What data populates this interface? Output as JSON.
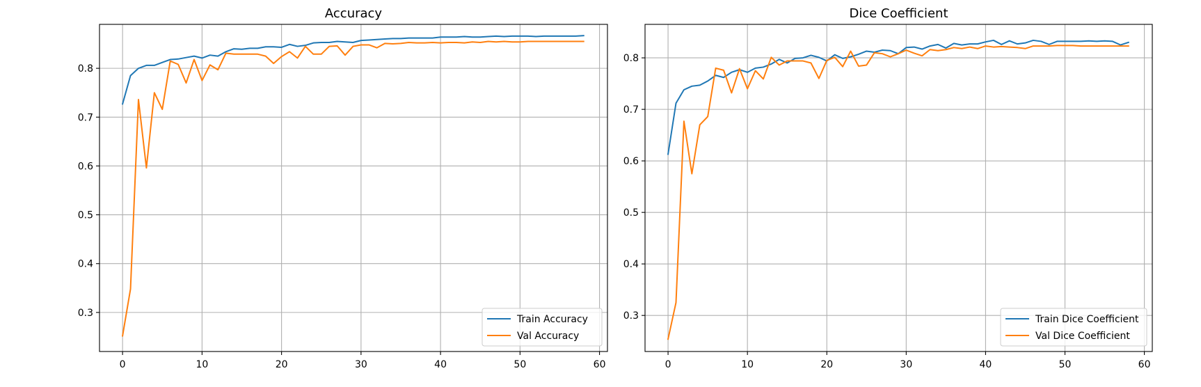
{
  "chart_data": [
    {
      "type": "line",
      "title": "Accuracy",
      "xlabel": "",
      "ylabel": "",
      "xlim": [
        -2.9,
        61.0
      ],
      "ylim": [
        0.22,
        0.89
      ],
      "xticks": [
        0,
        10,
        20,
        30,
        40,
        50,
        60
      ],
      "yticks": [
        0.3,
        0.4,
        0.5,
        0.6,
        0.7,
        0.8
      ],
      "grid": true,
      "legend_position": "lower-right",
      "series": [
        {
          "name": "Train Accuracy",
          "color": "#1f77b4",
          "x": [
            0,
            1,
            2,
            3,
            4,
            5,
            6,
            7,
            8,
            9,
            10,
            11,
            12,
            13,
            14,
            15,
            16,
            17,
            18,
            19,
            20,
            21,
            22,
            23,
            24,
            25,
            26,
            27,
            28,
            29,
            30,
            31,
            32,
            33,
            34,
            35,
            36,
            37,
            38,
            39,
            40,
            41,
            42,
            43,
            44,
            45,
            46,
            47,
            48,
            49,
            50,
            51,
            52,
            53,
            54,
            55,
            56,
            57,
            58
          ],
          "values": [
            0.727,
            0.785,
            0.8,
            0.806,
            0.806,
            0.812,
            0.818,
            0.819,
            0.822,
            0.825,
            0.821,
            0.827,
            0.825,
            0.834,
            0.84,
            0.839,
            0.841,
            0.841,
            0.844,
            0.844,
            0.843,
            0.849,
            0.845,
            0.847,
            0.852,
            0.853,
            0.853,
            0.855,
            0.854,
            0.853,
            0.857,
            0.858,
            0.859,
            0.86,
            0.861,
            0.861,
            0.862,
            0.862,
            0.862,
            0.862,
            0.864,
            0.864,
            0.864,
            0.865,
            0.864,
            0.864,
            0.865,
            0.866,
            0.865,
            0.866,
            0.866,
            0.866,
            0.865,
            0.866,
            0.866,
            0.866,
            0.866,
            0.866,
            0.867
          ]
        },
        {
          "name": "Val Accuracy",
          "color": "#ff7f0e",
          "x": [
            0,
            1,
            2,
            3,
            4,
            5,
            6,
            7,
            8,
            9,
            10,
            11,
            12,
            13,
            14,
            15,
            16,
            17,
            18,
            19,
            20,
            21,
            22,
            23,
            24,
            25,
            26,
            27,
            28,
            29,
            30,
            31,
            32,
            33,
            34,
            35,
            36,
            37,
            38,
            39,
            40,
            41,
            42,
            43,
            44,
            45,
            46,
            47,
            48,
            49,
            50,
            51,
            52,
            53,
            54,
            55,
            56,
            57,
            58
          ],
          "values": [
            0.252,
            0.348,
            0.736,
            0.596,
            0.75,
            0.716,
            0.815,
            0.808,
            0.77,
            0.818,
            0.775,
            0.807,
            0.797,
            0.831,
            0.829,
            0.829,
            0.829,
            0.829,
            0.825,
            0.81,
            0.824,
            0.834,
            0.821,
            0.845,
            0.829,
            0.829,
            0.845,
            0.846,
            0.827,
            0.845,
            0.848,
            0.848,
            0.842,
            0.851,
            0.85,
            0.851,
            0.853,
            0.852,
            0.852,
            0.853,
            0.852,
            0.853,
            0.853,
            0.852,
            0.854,
            0.853,
            0.855,
            0.854,
            0.855,
            0.854,
            0.854,
            0.855,
            0.855,
            0.855,
            0.855,
            0.855,
            0.855,
            0.855,
            0.855
          ]
        }
      ]
    },
    {
      "type": "line",
      "title": "Dice Coefficient",
      "xlabel": "",
      "ylabel": "",
      "xlim": [
        -2.9,
        61.0
      ],
      "ylim": [
        0.23,
        0.865
      ],
      "xticks": [
        0,
        10,
        20,
        30,
        40,
        50,
        60
      ],
      "yticks": [
        0.3,
        0.4,
        0.5,
        0.6,
        0.7,
        0.8
      ],
      "grid": true,
      "legend_position": "lower-right",
      "series": [
        {
          "name": "Train Dice Coefficient",
          "color": "#1f77b4",
          "x": [
            0,
            1,
            2,
            3,
            4,
            5,
            6,
            7,
            8,
            9,
            10,
            11,
            12,
            13,
            14,
            15,
            16,
            17,
            18,
            19,
            20,
            21,
            22,
            23,
            24,
            25,
            26,
            27,
            28,
            29,
            30,
            31,
            32,
            33,
            34,
            35,
            36,
            37,
            38,
            39,
            40,
            41,
            42,
            43,
            44,
            45,
            46,
            47,
            48,
            49,
            50,
            51,
            52,
            53,
            54,
            55,
            56,
            57,
            58
          ],
          "values": [
            0.613,
            0.712,
            0.738,
            0.745,
            0.747,
            0.755,
            0.766,
            0.762,
            0.772,
            0.777,
            0.772,
            0.78,
            0.782,
            0.788,
            0.797,
            0.79,
            0.799,
            0.8,
            0.805,
            0.801,
            0.794,
            0.806,
            0.799,
            0.802,
            0.807,
            0.813,
            0.811,
            0.815,
            0.814,
            0.808,
            0.82,
            0.821,
            0.817,
            0.823,
            0.826,
            0.819,
            0.828,
            0.825,
            0.827,
            0.827,
            0.831,
            0.834,
            0.826,
            0.833,
            0.827,
            0.829,
            0.834,
            0.832,
            0.826,
            0.832,
            0.832,
            0.832,
            0.832,
            0.833,
            0.832,
            0.833,
            0.832,
            0.825,
            0.83
          ]
        },
        {
          "name": "Val Dice Coefficient",
          "color": "#ff7f0e",
          "x": [
            0,
            1,
            2,
            3,
            4,
            5,
            6,
            7,
            8,
            9,
            10,
            11,
            12,
            13,
            14,
            15,
            16,
            17,
            18,
            19,
            20,
            21,
            22,
            23,
            24,
            25,
            26,
            27,
            28,
            29,
            30,
            31,
            32,
            33,
            34,
            35,
            36,
            37,
            38,
            39,
            40,
            41,
            42,
            43,
            44,
            45,
            46,
            47,
            48,
            49,
            50,
            51,
            52,
            53,
            54,
            55,
            56,
            57,
            58
          ],
          "values": [
            0.254,
            0.325,
            0.677,
            0.575,
            0.67,
            0.686,
            0.78,
            0.776,
            0.732,
            0.779,
            0.74,
            0.775,
            0.759,
            0.801,
            0.786,
            0.794,
            0.794,
            0.794,
            0.79,
            0.76,
            0.795,
            0.801,
            0.783,
            0.813,
            0.784,
            0.786,
            0.81,
            0.808,
            0.802,
            0.808,
            0.815,
            0.809,
            0.804,
            0.816,
            0.814,
            0.816,
            0.82,
            0.818,
            0.821,
            0.818,
            0.823,
            0.821,
            0.822,
            0.821,
            0.82,
            0.818,
            0.823,
            0.823,
            0.823,
            0.824,
            0.824,
            0.824,
            0.823,
            0.823,
            0.823,
            0.823,
            0.823,
            0.823,
            0.823
          ]
        }
      ]
    }
  ]
}
